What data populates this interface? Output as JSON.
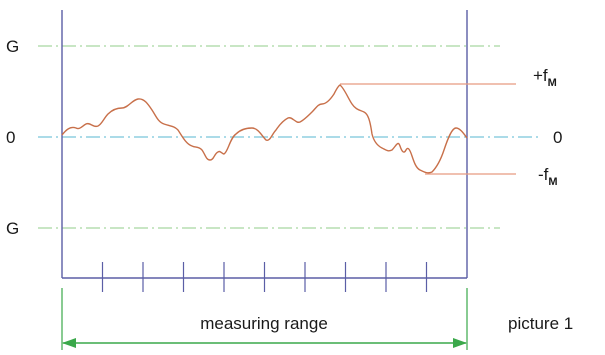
{
  "labels": {
    "g_upper": "G",
    "g_lower": "G",
    "zero_left": "0",
    "zero_right": "0",
    "plus_fm_sign": "+f",
    "plus_fm_sub": "M",
    "minus_fm_sign": "-f",
    "minus_fm_sub": "M",
    "measuring_range": "measuring range",
    "picture_caption": "picture 1"
  },
  "colors": {
    "frame": "#5b5ea6",
    "limit_line": "#a8d8a0",
    "zero_line": "#8fcfe0",
    "profile": "#c8704a",
    "fm_line": "#e89a80",
    "arrow": "#3aa84a",
    "text": "#1a1a1a"
  },
  "scale": {
    "tick_count": 10
  }
}
